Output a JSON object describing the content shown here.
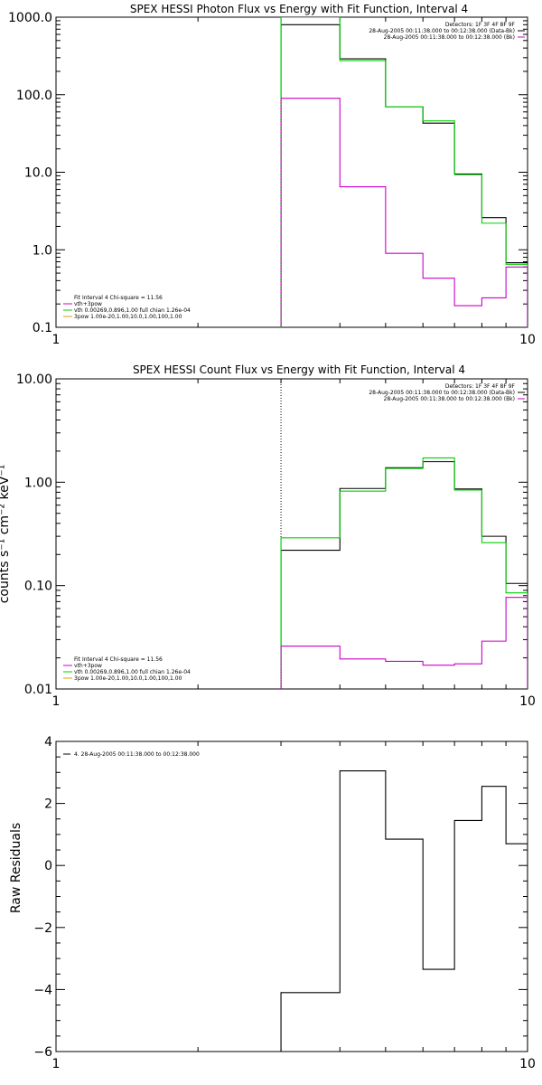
{
  "colors": {
    "data": "#000000",
    "total": "#00d000",
    "component": "#cc00cc",
    "axes": "#000000"
  },
  "chart_data": [
    {
      "type": "line",
      "title": "SPEX HESSI Photon Flux vs Energy with Fit Function, Interval 4",
      "xlabel": "",
      "ylabel": "",
      "xscale": "log",
      "yscale": "log",
      "xlim": [
        1,
        10
      ],
      "ylim": [
        0.1,
        1000
      ],
      "xticks": [
        {
          "v": 1,
          "label": "1"
        },
        {
          "v": 10,
          "label": "10"
        }
      ],
      "yticks": [
        {
          "v": 0.1,
          "label": "0.1"
        },
        {
          "v": 1,
          "label": "1.0"
        },
        {
          "v": 10,
          "label": "10.0"
        },
        {
          "v": 100,
          "label": "100.0"
        },
        {
          "v": 1000,
          "label": "1000.0"
        }
      ],
      "marker_x": 3,
      "bin_edges": [
        3,
        4,
        5,
        6,
        7,
        8,
        9,
        10
      ],
      "series": [
        {
          "name": "",
          "role": "data",
          "values": [
            800,
            290,
            70,
            43,
            9.5,
            2.6,
            0.68
          ]
        },
        {
          "name": "",
          "role": "total",
          "values": [
            1000,
            275,
            70,
            46,
            9.3,
            2.2,
            0.65
          ]
        },
        {
          "name": "",
          "role": "component",
          "values": [
            90,
            6.5,
            0.9,
            0.43,
            0.19,
            0.24,
            0.6
          ]
        }
      ],
      "legend_header": [
        "Detectors: 1F 3F 4F 8F 9F",
        "28-Aug-2005 00:11:38.000 to 00:12:38.000 (Data-Bk)",
        "28-Aug-2005 00:11:38.000 to 00:12:38.000 (Bk)"
      ],
      "legend_fit": [
        "Fit Interval 4   Chi-square = 11.56",
        "vth+3pow",
        "vth 0.00269,0.896,1.00   full chian 1.26e-04",
        "3pow 1.00e-20,1.00,10.0,1.00,100,1.00"
      ]
    },
    {
      "type": "line",
      "title": "SPEX HESSI Count Flux vs Energy with Fit Function, Interval 4",
      "xlabel": "",
      "ylabel": "counts s⁻¹ cm⁻² keV⁻¹",
      "xscale": "log",
      "yscale": "log",
      "xlim": [
        1,
        10
      ],
      "ylim": [
        0.01,
        10
      ],
      "xticks": [
        {
          "v": 1,
          "label": "1"
        },
        {
          "v": 10,
          "label": "10"
        }
      ],
      "yticks": [
        {
          "v": 0.01,
          "label": "0.01"
        },
        {
          "v": 0.1,
          "label": "0.10"
        },
        {
          "v": 1,
          "label": "1.00"
        },
        {
          "v": 10,
          "label": "10.00"
        }
      ],
      "marker_x": 3,
      "bin_edges": [
        3,
        4,
        5,
        6,
        7,
        8,
        9,
        10
      ],
      "series": [
        {
          "name": "",
          "role": "data",
          "values": [
            0.22,
            0.87,
            1.38,
            1.58,
            0.86,
            0.3,
            0.105
          ]
        },
        {
          "name": "",
          "role": "total",
          "values": [
            0.29,
            0.82,
            1.36,
            1.72,
            0.84,
            0.26,
            0.085
          ]
        },
        {
          "name": "",
          "role": "component",
          "values": [
            0.026,
            0.0195,
            0.0185,
            0.017,
            0.0175,
            0.029,
            0.077
          ]
        }
      ],
      "legend_header": [
        "Detectors: 1F 3F 4F 8F 9F",
        "28-Aug-2005 00:11:38.000 to 00:12:38.000 (Data-Bk)",
        "28-Aug-2005 00:11:38.000 to 00:12:38.000 (Bk)"
      ],
      "legend_fit": [
        "Fit Interval 4   Chi-square = 11.56",
        "vth+3pow",
        "vth 0.00269,0.896,1.00   full chian 1.26e-04",
        "3pow 1.00e-20,1.00,10.0,1.00,100,1.00"
      ]
    },
    {
      "type": "line",
      "title": "",
      "xlabel": "",
      "ylabel": "Raw Residuals",
      "xscale": "log",
      "yscale": "linear",
      "xlim": [
        1,
        10
      ],
      "ylim": [
        -6,
        4
      ],
      "xticks": [
        {
          "v": 1,
          "label": "1"
        },
        {
          "v": 10,
          "label": "10"
        }
      ],
      "yticks": [
        {
          "v": -6,
          "label": "−6"
        },
        {
          "v": -4,
          "label": "−4"
        },
        {
          "v": -2,
          "label": "−2"
        },
        {
          "v": 0,
          "label": "0"
        },
        {
          "v": 2,
          "label": "2"
        },
        {
          "v": 4,
          "label": "4"
        }
      ],
      "bin_edges": [
        3,
        4,
        5,
        6,
        7,
        8,
        9,
        10
      ],
      "series": [
        {
          "name": "4. 28-Aug-2005 00:11:38.000 to 00:12:38.000",
          "role": "data",
          "values": [
            -4.1,
            3.05,
            0.85,
            -3.35,
            1.45,
            2.55,
            0.7
          ]
        }
      ]
    }
  ]
}
